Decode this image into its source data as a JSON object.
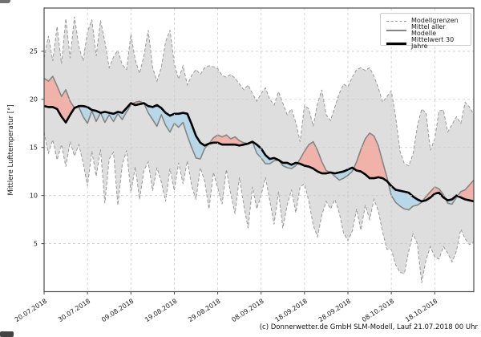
{
  "caption": "(c) Donnerwetter.de GmbH SLM-Modell, Lauf 21.07.2018 00 Uhr",
  "legend": {
    "items": [
      {
        "label": "Modellgrenzen",
        "style": "dashed-gray"
      },
      {
        "label": "Mittel aller Modelle",
        "style": "solid-gray"
      },
      {
        "label": "Mittelwert 30 Jahre",
        "style": "solid-black-bold"
      }
    ]
  },
  "colors": {
    "band_fill": "#dedede",
    "band_edge": "#999999",
    "model_line": "#858585",
    "climate_line": "#000000",
    "warm_fill": "#f0b2a9",
    "cool_fill": "#b8d7e8",
    "grid": "#cbcbcb",
    "axis": "#4a4a4a",
    "tick_text": "#1a1a1a"
  },
  "chart_data": {
    "type": "line",
    "title": "",
    "xlabel": "",
    "ylabel": "Mittlere Lufttemperatur [°]",
    "grid": true,
    "legend_position": "upper right",
    "x_unit": "days since 20.07.2018",
    "x_range": [
      0,
      99
    ],
    "y_range": [
      0,
      29.5
    ],
    "y_ticks": [
      5,
      10,
      15,
      20,
      25
    ],
    "x_tick_days": [
      0,
      10,
      20,
      30,
      40,
      50,
      60,
      70,
      80,
      90
    ],
    "x_tick_labels": [
      "20.07.2018",
      "30.07.2018",
      "09.08.2018",
      "19.08.2018",
      "29.08.2018",
      "08.09.2018",
      "18.09.2018",
      "28.09.2018",
      "08.10.2018",
      "18.10.2018"
    ],
    "series": [
      {
        "name": "Modellgrenzen (obere Grenze)",
        "role": "upper",
        "style": "dashed-gray",
        "values": [
          24.3,
          26.6,
          24.0,
          27.6,
          23.7,
          28.4,
          24.3,
          28.6,
          25.5,
          24.0,
          27.0,
          28.3,
          24.5,
          28.2,
          26.0,
          23.3,
          24.4,
          25.1,
          23.6,
          23.1,
          26.8,
          24.1,
          22.7,
          24.5,
          27.2,
          23.3,
          21.9,
          23.3,
          26.0,
          27.2,
          23.7,
          22.1,
          23.5,
          21.5,
          22.5,
          23.1,
          22.6,
          23.3,
          23.5,
          23.4,
          23.2,
          22.5,
          22.3,
          22.6,
          22.2,
          21.6,
          21.0,
          21.5,
          20.6,
          19.8,
          20.6,
          21.2,
          20.0,
          19.4,
          20.8,
          19.6,
          18.4,
          19.0,
          17.6,
          15.6,
          19.4,
          19.0,
          17.2,
          19.6,
          21.0,
          18.4,
          17.8,
          19.2,
          20.6,
          21.6,
          21.3,
          22.3,
          23.1,
          23.3,
          23.0,
          23.3,
          22.4,
          21.2,
          19.7,
          20.3,
          20.9,
          18.2,
          14.6,
          13.3,
          13.1,
          14.3,
          17.2,
          19.0,
          18.6,
          14.7,
          15.9,
          18.8,
          18.9,
          16.6,
          17.4,
          18.2,
          17.5,
          19.7,
          19.2,
          18.4
        ]
      },
      {
        "name": "Modellgrenzen (untere Grenze)",
        "role": "lower",
        "style": "dashed-gray",
        "values": [
          16.6,
          14.4,
          15.8,
          13.7,
          15.3,
          13.0,
          15.6,
          14.1,
          15.3,
          13.4,
          11.0,
          14.6,
          12.0,
          14.8,
          9.2,
          13.8,
          14.5,
          9.0,
          13.2,
          14.7,
          10.3,
          13.0,
          9.6,
          12.6,
          13.5,
          10.5,
          12.9,
          11.4,
          9.4,
          12.8,
          10.5,
          13.4,
          11.2,
          13.6,
          11.0,
          9.6,
          12.9,
          11.5,
          8.6,
          12.4,
          10.8,
          9.1,
          12.7,
          10.2,
          8.1,
          11.9,
          9.0,
          6.6,
          10.9,
          8.6,
          10.0,
          11.9,
          9.5,
          7.0,
          10.4,
          6.6,
          9.0,
          10.6,
          8.2,
          10.9,
          11.2,
          9.4,
          6.9,
          5.7,
          8.0,
          9.4,
          8.6,
          9.6,
          8.2,
          6.1,
          5.3,
          6.3,
          8.6,
          6.4,
          9.0,
          7.5,
          9.6,
          8.4,
          6.2,
          4.4,
          4.4,
          2.8,
          2.0,
          1.9,
          4.2,
          6.0,
          5.0,
          0.9,
          3.3,
          4.7,
          3.6,
          3.4,
          4.7,
          4.0,
          3.1,
          4.2,
          6.5,
          5.5,
          4.9,
          5.2
        ]
      },
      {
        "name": "Mittel aller Modelle",
        "role": "model",
        "style": "solid-gray",
        "values": [
          22.2,
          21.9,
          22.4,
          21.4,
          20.3,
          21.0,
          19.8,
          19.1,
          19.2,
          18.2,
          17.5,
          18.8,
          17.7,
          18.6,
          17.6,
          18.4,
          17.7,
          18.5,
          17.9,
          18.7,
          19.4,
          19.7,
          19.8,
          19.6,
          18.6,
          17.9,
          17.2,
          18.4,
          17.3,
          16.6,
          17.5,
          17.1,
          17.6,
          16.2,
          15.0,
          13.9,
          13.8,
          14.9,
          15.4,
          16.0,
          16.3,
          16.1,
          16.3,
          15.9,
          16.1,
          15.7,
          15.5,
          15.4,
          15.6,
          14.4,
          13.9,
          13.3,
          13.3,
          13.6,
          13.7,
          13.1,
          12.9,
          12.8,
          13.1,
          13.8,
          14.6,
          15.3,
          15.6,
          14.7,
          13.5,
          12.6,
          12.4,
          12.0,
          11.6,
          11.8,
          12.1,
          12.5,
          13.5,
          14.8,
          15.9,
          16.5,
          16.2,
          15.2,
          13.5,
          11.9,
          10.0,
          9.3,
          8.9,
          8.6,
          8.5,
          8.9,
          9.0,
          9.3,
          9.9,
          10.4,
          10.9,
          10.7,
          10.1,
          9.2,
          9.1,
          9.8,
          10.4,
          10.6,
          11.1,
          11.6
        ]
      },
      {
        "name": "Mittelwert 30 Jahre",
        "role": "climate",
        "style": "solid-black-bold",
        "values": [
          19.3,
          19.2,
          19.2,
          19.0,
          18.2,
          17.6,
          18.4,
          19.1,
          19.3,
          19.3,
          19.2,
          18.9,
          18.8,
          18.6,
          18.7,
          18.6,
          18.5,
          18.7,
          18.6,
          19.1,
          19.6,
          19.4,
          19.5,
          19.6,
          19.3,
          19.2,
          19.4,
          19.1,
          18.6,
          18.3,
          18.5,
          18.5,
          18.6,
          18.5,
          17.4,
          16.2,
          15.5,
          15.2,
          15.4,
          15.5,
          15.5,
          15.3,
          15.3,
          15.3,
          15.3,
          15.2,
          15.3,
          15.4,
          15.6,
          15.3,
          14.9,
          14.2,
          13.8,
          13.9,
          13.7,
          13.4,
          13.4,
          13.2,
          13.4,
          13.3,
          13.1,
          13.0,
          12.8,
          12.5,
          12.3,
          12.3,
          12.4,
          12.3,
          12.4,
          12.5,
          12.7,
          12.9,
          12.6,
          12.5,
          12.2,
          11.8,
          11.8,
          11.9,
          11.8,
          11.5,
          11.0,
          10.6,
          10.5,
          10.4,
          10.3,
          9.9,
          9.6,
          9.4,
          9.5,
          9.8,
          10.2,
          10.3,
          9.8,
          9.5,
          9.6,
          10.0,
          9.8,
          9.6,
          9.5,
          9.4
        ]
      }
    ]
  }
}
